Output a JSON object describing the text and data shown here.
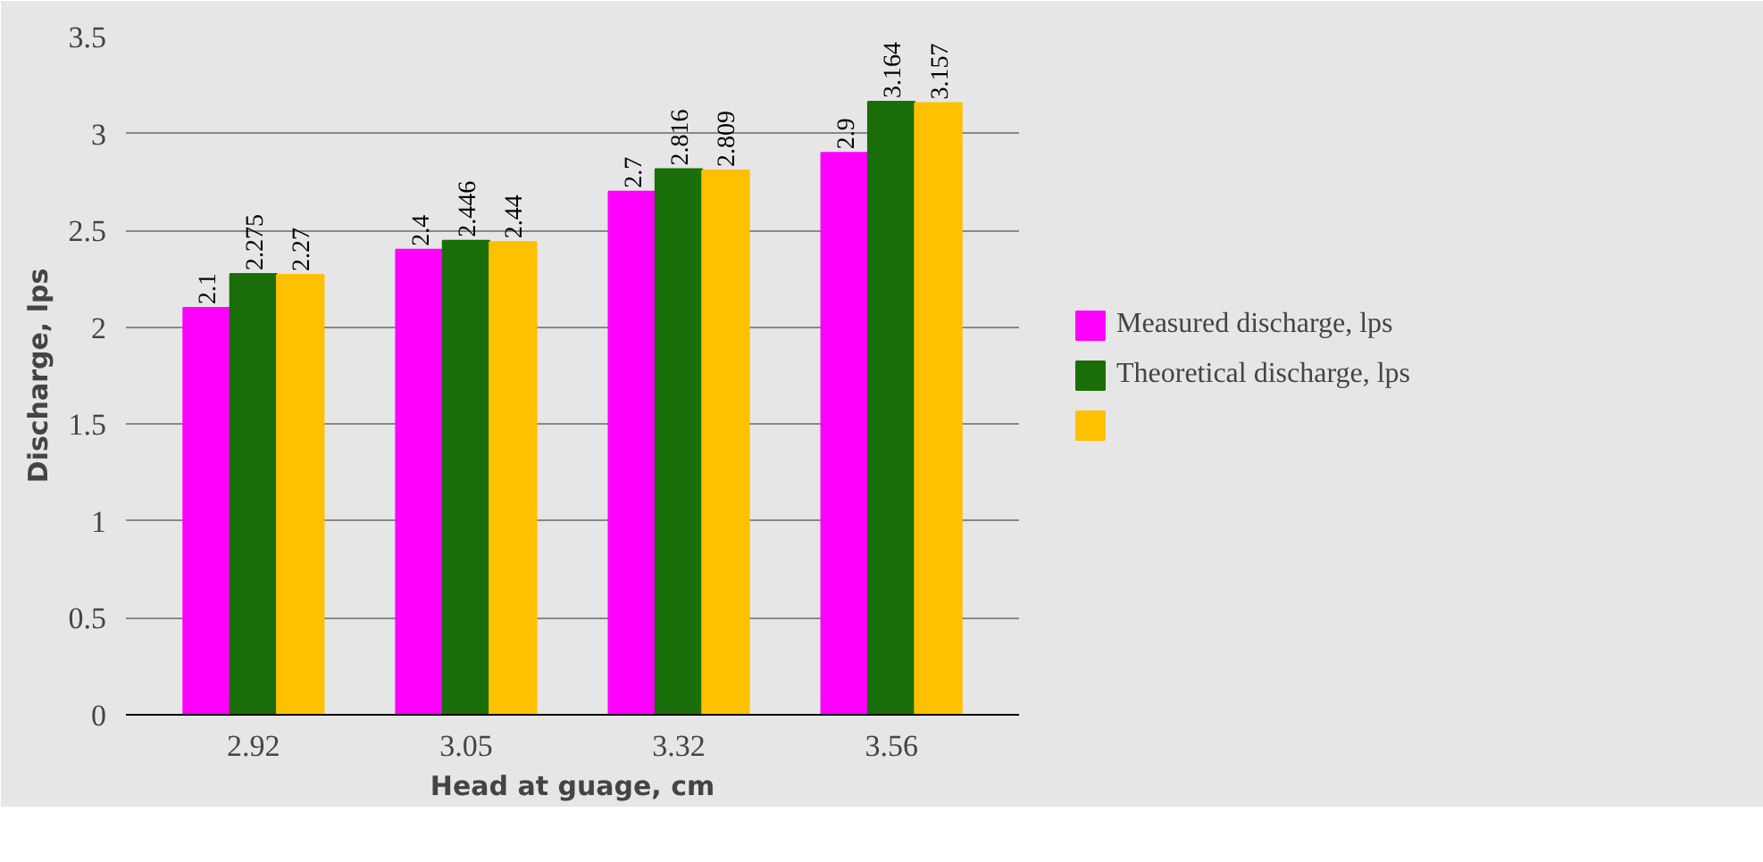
{
  "chart_data": {
    "type": "bar",
    "xlabel": "Head at guage, cm",
    "ylabel": "Discharge, lps",
    "categories": [
      "2.92",
      "3.05",
      "3.32",
      "3.56"
    ],
    "series": [
      {
        "name": "Measured discharge, lps",
        "color": "#ff00ff",
        "values": [
          2.1,
          2.4,
          2.7,
          2.9
        ]
      },
      {
        "name": "Theoretical discharge, lps",
        "color": "#1a6e0a",
        "values": [
          2.275,
          2.446,
          2.816,
          3.164
        ]
      },
      {
        "color": "#ffc000",
        "values": [
          2.27,
          2.44,
          2.809,
          3.157
        ]
      }
    ],
    "ylim": [
      0,
      3.5
    ],
    "yticks": [
      0,
      0.5,
      1,
      1.5,
      2,
      2.5,
      3,
      3.5
    ],
    "grid": "y",
    "legend": "right",
    "data_labels": true
  }
}
